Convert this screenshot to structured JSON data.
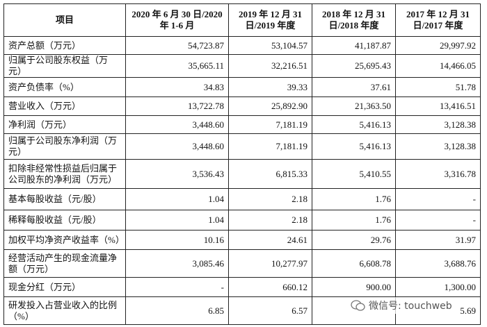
{
  "table": {
    "header": [
      "项目",
      "2020 年 6 月 30 日/2020 年 1-6 月",
      "2019 年 12 月 31 日/2019 年度",
      "2018 年 12 月 31 日/2018 年度",
      "2017 年 12 月 31 日/2017 年度"
    ],
    "rows": [
      [
        "资产总额（万元）",
        "54,723.87",
        "53,104.57",
        "41,187.87",
        "29,997.92"
      ],
      [
        "归属于公司股东权益（万元）",
        "35,665.11",
        "32,216.51",
        "25,695.43",
        "14,466.05"
      ],
      [
        "资产负债率（%）",
        "34.83",
        "39.33",
        "37.61",
        "51.78"
      ],
      [
        "营业收入（万元）",
        "13,722.78",
        "25,892.90",
        "21,363.50",
        "13,416.51"
      ],
      [
        "净利润（万元）",
        "3,448.60",
        "7,181.19",
        "5,416.13",
        "3,128.38"
      ],
      [
        "归属于公司股东净利润（万元）",
        "3,448.60",
        "7,181.19",
        "5,416.13",
        "3,128.38"
      ],
      [
        "扣除非经常性损益后归属于公司股东的净利润（万元）",
        "3,536.43",
        "6,815.33",
        "5,410.55",
        "3,316.78"
      ],
      [
        "基本每股收益（元/股）",
        "1.04",
        "2.18",
        "1.76",
        "-"
      ],
      [
        "稀释每股收益（元/股）",
        "1.04",
        "2.18",
        "1.76",
        "-"
      ],
      [
        "加权平均净资产收益率（%）",
        "10.16",
        "24.61",
        "29.76",
        "31.97"
      ],
      [
        "经营活动产生的现金流量净额（万元）",
        "3,085.46",
        "10,277.97",
        "6,608.78",
        "3,688.76"
      ],
      [
        "现金分红（万元）",
        "-",
        "660.12",
        "900.00",
        "1,300.00"
      ],
      [
        "研发投入占营业收入的比例（%）",
        "6.85",
        "6.57",
        null,
        "5.69"
      ]
    ]
  },
  "watermark": "微信号: touchweb"
}
